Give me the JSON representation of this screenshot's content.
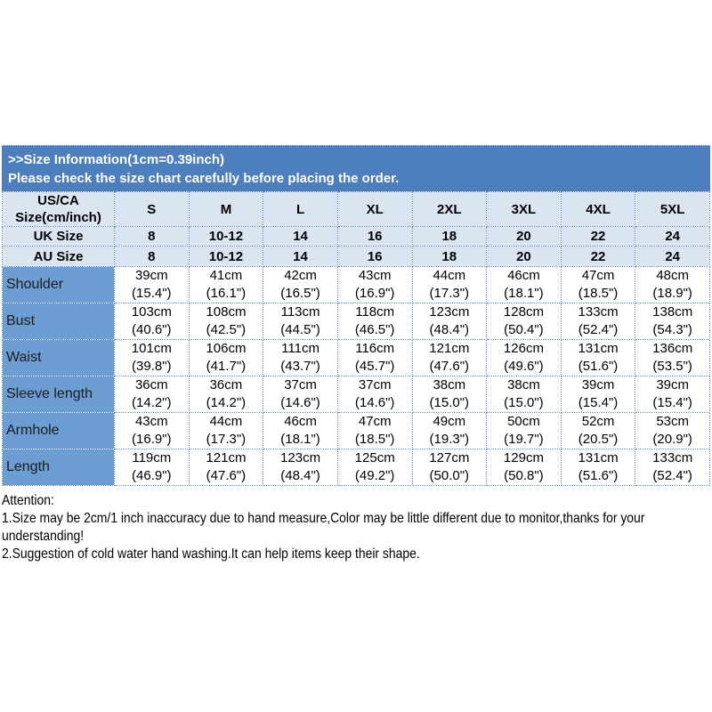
{
  "banner": {
    "title": ">>Size Information(1cm=0.39inch)",
    "subtitle": "Please check the size chart carefully before placing the order."
  },
  "table": {
    "corner_line1": "US/CA",
    "corner_line2": "Size(cm/inch)",
    "size_columns": [
      "S",
      "M",
      "L",
      "XL",
      "2XL",
      "3XL",
      "4XL",
      "5XL"
    ],
    "uk_row": {
      "label": "UK Size",
      "values": [
        "8",
        "10-12",
        "14",
        "16",
        "18",
        "20",
        "22",
        "24"
      ]
    },
    "au_row": {
      "label": "AU Size",
      "values": [
        "8",
        "10-12",
        "14",
        "16",
        "18",
        "20",
        "22",
        "24"
      ]
    },
    "measurements": [
      {
        "label": "Shoulder",
        "cm": [
          "39cm",
          "41cm",
          "42cm",
          "43cm",
          "44cm",
          "46cm",
          "47cm",
          "48cm"
        ],
        "inch": [
          "(15.4\")",
          "(16.1\")",
          "(16.5\")",
          "(16.9\")",
          "(17.3\")",
          "(18.1\")",
          "(18.5\")",
          "(18.9\")"
        ]
      },
      {
        "label": "Bust",
        "cm": [
          "103cm",
          "108cm",
          "113cm",
          "118cm",
          "123cm",
          "128cm",
          "133cm",
          "138cm"
        ],
        "inch": [
          "(40.6\")",
          "(42.5\")",
          "(44.5\")",
          "(46.5\")",
          "(48.4\")",
          "(50.4\")",
          "(52.4\")",
          "(54.3\")"
        ]
      },
      {
        "label": "Waist",
        "cm": [
          "101cm",
          "106cm",
          "111cm",
          "116cm",
          "121cm",
          "126cm",
          "131cm",
          "136cm"
        ],
        "inch": [
          "(39.8\")",
          "(41.7\")",
          "(43.7\")",
          "(45.7\")",
          "(47.6\")",
          "(49.6\")",
          "(51.6\")",
          "(53.5\")"
        ]
      },
      {
        "label": "Sleeve length",
        "cm": [
          "36cm",
          "36cm",
          "37cm",
          "37cm",
          "38cm",
          "38cm",
          "39cm",
          "39cm"
        ],
        "inch": [
          "(14.2\")",
          "(14.2\")",
          "(14.6\")",
          "(14.6\")",
          "(15.0\")",
          "(15.0\")",
          "(15.4\")",
          "(15.4\")"
        ]
      },
      {
        "label": "Armhole",
        "cm": [
          "43cm",
          "44cm",
          "46cm",
          "47cm",
          "49cm",
          "50cm",
          "52cm",
          "53cm"
        ],
        "inch": [
          "(16.9\")",
          "(17.3\")",
          "(18.1\")",
          "(18.5\")",
          "(19.3\")",
          "(19.7\")",
          "(20.5\")",
          "(20.9\")"
        ]
      },
      {
        "label": "Length",
        "cm": [
          "119cm",
          "121cm",
          "123cm",
          "125cm",
          "127cm",
          "129cm",
          "131cm",
          "133cm"
        ],
        "inch": [
          "(46.9\")",
          "(47.6\")",
          "(48.4\")",
          "(49.2\")",
          "(50.0\")",
          "(50.8\")",
          "(51.6\")",
          "(52.4\")"
        ]
      }
    ]
  },
  "attention": {
    "title": "Attention:",
    "lines": [
      "1.Size may be 2cm/1 inch inaccuracy due to hand measure,Color may be little different due to monitor,thanks for your",
      "understanding!",
      "2.Suggestion of cold water hand washing.It can help items keep their shape."
    ]
  },
  "colors": {
    "banner_bg": "#4d7ebe",
    "header_bg": "#dbe5f1",
    "label_column_bg": "#6b9cd2",
    "grid_border": "#5e93cc",
    "banner_text": "#ffffff",
    "body_text": "#000000"
  }
}
